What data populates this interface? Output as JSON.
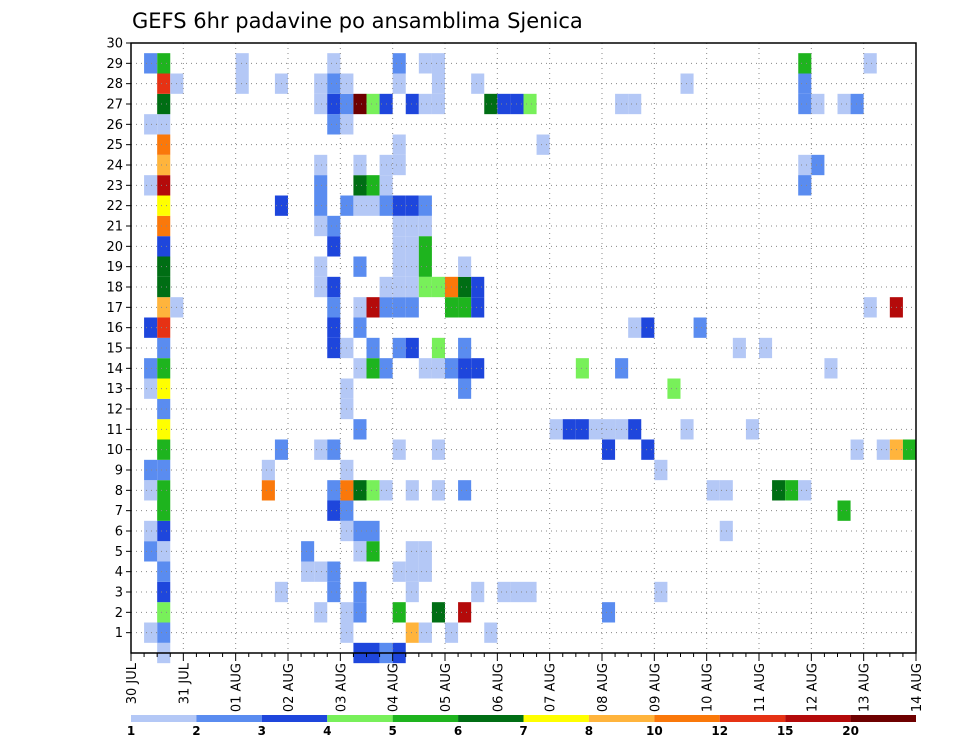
{
  "chart_data": {
    "type": "heatmap",
    "title": "GEFS 6hr padavine po ansamblima Sjenica",
    "x_labels": [
      "30 JUL",
      "31 JUL",
      "01 AUG",
      "02 AUG",
      "03 AUG",
      "04 AUG",
      "05 AUG",
      "06 AUG",
      "07 AUG",
      "08 AUG",
      "09 AUG",
      "10 AUG",
      "11 AUG",
      "12 AUG",
      "13 AUG",
      "14 AUG"
    ],
    "x_range": [
      0,
      60
    ],
    "steps_per_day": 4,
    "y_labels": [
      1,
      2,
      3,
      4,
      5,
      6,
      7,
      8,
      9,
      10,
      11,
      12,
      13,
      14,
      15,
      16,
      17,
      18,
      19,
      20,
      21,
      22,
      23,
      24,
      25,
      26,
      27,
      28,
      29,
      30
    ],
    "y_range": [
      0,
      30
    ],
    "grid": true,
    "legend": {
      "placement": "bottom",
      "thresholds": [
        "1",
        "2",
        "3",
        "4",
        "5",
        "6",
        "7",
        "8",
        "10",
        "12",
        "15",
        "20"
      ],
      "colors": [
        "#b4c8f6",
        "#5a8cf0",
        "#1e46dc",
        "#78f05a",
        "#1eb41e",
        "#006e14",
        "#ffff00",
        "#ffb43c",
        "#fa780a",
        "#e63214",
        "#b40a0a",
        "#6e0000"
      ]
    },
    "cells": [
      [
        2,
        0,
        1
      ],
      [
        2,
        1,
        2
      ],
      [
        2,
        2,
        4
      ],
      [
        2,
        3,
        3
      ],
      [
        2,
        4,
        2
      ],
      [
        2,
        5,
        1
      ],
      [
        2,
        6,
        3
      ],
      [
        2,
        7,
        5
      ],
      [
        2,
        8,
        5
      ],
      [
        2,
        9,
        2
      ],
      [
        2,
        10,
        5
      ],
      [
        2,
        11,
        7
      ],
      [
        2,
        12,
        2
      ],
      [
        2,
        13,
        7
      ],
      [
        2,
        14,
        5
      ],
      [
        2,
        15,
        2
      ],
      [
        2,
        16,
        10
      ],
      [
        2,
        17,
        8
      ],
      [
        2,
        18,
        6
      ],
      [
        2,
        19,
        6
      ],
      [
        2,
        20,
        3
      ],
      [
        2,
        21,
        9
      ],
      [
        2,
        22,
        7
      ],
      [
        2,
        23,
        11
      ],
      [
        2,
        24,
        8
      ],
      [
        2,
        25,
        9
      ],
      [
        2,
        26,
        1
      ],
      [
        2,
        27,
        6
      ],
      [
        2,
        28,
        10
      ],
      [
        2,
        29,
        5
      ],
      [
        2,
        30,
        7
      ],
      [
        1,
        1,
        1
      ],
      [
        1,
        5,
        2
      ],
      [
        1,
        6,
        1
      ],
      [
        1,
        8,
        1
      ],
      [
        1,
        9,
        2
      ],
      [
        1,
        13,
        1
      ],
      [
        1,
        14,
        2
      ],
      [
        1,
        16,
        3
      ],
      [
        1,
        23,
        1
      ],
      [
        1,
        26,
        1
      ],
      [
        1,
        29,
        2
      ],
      [
        3,
        17,
        1
      ],
      [
        3,
        28,
        1
      ],
      [
        8,
        28,
        1
      ],
      [
        8,
        29,
        1
      ],
      [
        14,
        4,
        1
      ],
      [
        14,
        10,
        1
      ],
      [
        14,
        24,
        1
      ],
      [
        14,
        21,
        1
      ],
      [
        14,
        2,
        1
      ],
      [
        14,
        28,
        1
      ],
      [
        14,
        27,
        1
      ],
      [
        14,
        19,
        1
      ],
      [
        14,
        18,
        1
      ],
      [
        14,
        22,
        2
      ],
      [
        14,
        23,
        2
      ],
      [
        10,
        8,
        9
      ],
      [
        10,
        9,
        1
      ],
      [
        11,
        3,
        1
      ],
      [
        11,
        10,
        2
      ],
      [
        11,
        22,
        3
      ],
      [
        11,
        28,
        1
      ],
      [
        13,
        4,
        1
      ],
      [
        13,
        5,
        2
      ],
      [
        15,
        3,
        2
      ],
      [
        15,
        4,
        2
      ],
      [
        15,
        7,
        3
      ],
      [
        15,
        8,
        2
      ],
      [
        15,
        10,
        2
      ],
      [
        15,
        15,
        3
      ],
      [
        15,
        16,
        3
      ],
      [
        15,
        17,
        2
      ],
      [
        15,
        18,
        3
      ],
      [
        15,
        20,
        3
      ],
      [
        15,
        21,
        2
      ],
      [
        15,
        26,
        2
      ],
      [
        15,
        27,
        3
      ],
      [
        15,
        28,
        2
      ],
      [
        15,
        29,
        1
      ],
      [
        15,
        30,
        2
      ],
      [
        16,
        1,
        1
      ],
      [
        16,
        2,
        1
      ],
      [
        16,
        6,
        1
      ],
      [
        16,
        7,
        2
      ],
      [
        16,
        8,
        9
      ],
      [
        16,
        9,
        1
      ],
      [
        16,
        12,
        1
      ],
      [
        16,
        13,
        1
      ],
      [
        16,
        15,
        1
      ],
      [
        16,
        22,
        2
      ],
      [
        16,
        26,
        1
      ],
      [
        16,
        27,
        2
      ],
      [
        16,
        28,
        1
      ],
      [
        17,
        0,
        3
      ],
      [
        17,
        2,
        2
      ],
      [
        17,
        3,
        2
      ],
      [
        17,
        5,
        1
      ],
      [
        17,
        6,
        2
      ],
      [
        17,
        8,
        6
      ],
      [
        17,
        11,
        2
      ],
      [
        17,
        14,
        1
      ],
      [
        17,
        16,
        2
      ],
      [
        17,
        17,
        1
      ],
      [
        17,
        19,
        2
      ],
      [
        17,
        22,
        1
      ],
      [
        17,
        23,
        6
      ],
      [
        17,
        24,
        1
      ],
      [
        17,
        27,
        12
      ],
      [
        18,
        0,
        3
      ],
      [
        18,
        5,
        5
      ],
      [
        18,
        6,
        2
      ],
      [
        18,
        8,
        4
      ],
      [
        18,
        14,
        5
      ],
      [
        18,
        15,
        2
      ],
      [
        18,
        17,
        11
      ],
      [
        18,
        22,
        1
      ],
      [
        18,
        23,
        5
      ],
      [
        18,
        27,
        4
      ],
      [
        19,
        0,
        2
      ],
      [
        19,
        8,
        1
      ],
      [
        19,
        14,
        2
      ],
      [
        19,
        17,
        2
      ],
      [
        19,
        18,
        1
      ],
      [
        19,
        22,
        2
      ],
      [
        19,
        23,
        1
      ],
      [
        19,
        24,
        1
      ],
      [
        19,
        27,
        3
      ],
      [
        20,
        0,
        3
      ],
      [
        20,
        2,
        5
      ],
      [
        20,
        4,
        1
      ],
      [
        20,
        10,
        1
      ],
      [
        20,
        15,
        2
      ],
      [
        20,
        17,
        2
      ],
      [
        20,
        18,
        1
      ],
      [
        20,
        19,
        1
      ],
      [
        20,
        20,
        1
      ],
      [
        20,
        21,
        1
      ],
      [
        20,
        22,
        3
      ],
      [
        20,
        24,
        1
      ],
      [
        20,
        25,
        1
      ],
      [
        20,
        28,
        1
      ],
      [
        20,
        29,
        2
      ],
      [
        20,
        30,
        1
      ],
      [
        21,
        1,
        8
      ],
      [
        21,
        3,
        1
      ],
      [
        21,
        4,
        1
      ],
      [
        21,
        5,
        1
      ],
      [
        21,
        8,
        1
      ],
      [
        21,
        15,
        3
      ],
      [
        21,
        17,
        2
      ],
      [
        21,
        18,
        1
      ],
      [
        21,
        19,
        1
      ],
      [
        21,
        20,
        1
      ],
      [
        21,
        21,
        1
      ],
      [
        21,
        22,
        3
      ],
      [
        21,
        27,
        3
      ],
      [
        22,
        1,
        1
      ],
      [
        22,
        4,
        1
      ],
      [
        22,
        5,
        1
      ],
      [
        22,
        14,
        1
      ],
      [
        22,
        18,
        4
      ],
      [
        22,
        19,
        5
      ],
      [
        22,
        20,
        5
      ],
      [
        22,
        21,
        1
      ],
      [
        22,
        22,
        2
      ],
      [
        22,
        27,
        1
      ],
      [
        22,
        29,
        1
      ],
      [
        23,
        2,
        6
      ],
      [
        23,
        8,
        1
      ],
      [
        23,
        10,
        1
      ],
      [
        23,
        14,
        1
      ],
      [
        23,
        15,
        4
      ],
      [
        23,
        18,
        4
      ],
      [
        23,
        27,
        1
      ],
      [
        23,
        29,
        1
      ],
      [
        23,
        28,
        1
      ],
      [
        24,
        1,
        1
      ],
      [
        24,
        14,
        2
      ],
      [
        24,
        17,
        5
      ],
      [
        24,
        18,
        9
      ],
      [
        25,
        2,
        11
      ],
      [
        25,
        8,
        2
      ],
      [
        25,
        13,
        2
      ],
      [
        25,
        14,
        3
      ],
      [
        25,
        15,
        2
      ],
      [
        25,
        17,
        5
      ],
      [
        25,
        18,
        6
      ],
      [
        25,
        19,
        1
      ],
      [
        26,
        3,
        1
      ],
      [
        26,
        14,
        3
      ],
      [
        26,
        17,
        3
      ],
      [
        26,
        18,
        3
      ],
      [
        26,
        28,
        1
      ],
      [
        27,
        1,
        1
      ],
      [
        27,
        27,
        6
      ],
      [
        28,
        3,
        1
      ],
      [
        28,
        27,
        3
      ],
      [
        29,
        3,
        1
      ],
      [
        29,
        27,
        3
      ],
      [
        30,
        3,
        1
      ],
      [
        30,
        27,
        4
      ],
      [
        31,
        25,
        1
      ],
      [
        32,
        11,
        1
      ],
      [
        33,
        11,
        3
      ],
      [
        34,
        11,
        3
      ],
      [
        34,
        14,
        4
      ],
      [
        35,
        11,
        1
      ],
      [
        36,
        11,
        1
      ],
      [
        37,
        11,
        1
      ],
      [
        36,
        2,
        2
      ],
      [
        36,
        10,
        3
      ],
      [
        37,
        14,
        2
      ],
      [
        37,
        27,
        1
      ],
      [
        38,
        11,
        3
      ],
      [
        38,
        16,
        1
      ],
      [
        38,
        27,
        1
      ],
      [
        39,
        10,
        3
      ],
      [
        39,
        16,
        3
      ],
      [
        40,
        3,
        1
      ],
      [
        40,
        9,
        1
      ],
      [
        41,
        13,
        4
      ],
      [
        42,
        28,
        1
      ],
      [
        42,
        11,
        1
      ],
      [
        43,
        16,
        2
      ],
      [
        44,
        8,
        1
      ],
      [
        45,
        8,
        1
      ],
      [
        45,
        6,
        1
      ],
      [
        46,
        15,
        1
      ],
      [
        47,
        11,
        1
      ],
      [
        48,
        15,
        1
      ],
      [
        49,
        8,
        6
      ],
      [
        50,
        8,
        5
      ],
      [
        51,
        8,
        1
      ],
      [
        51,
        29,
        5
      ],
      [
        51,
        24,
        1
      ],
      [
        51,
        23,
        1
      ],
      [
        51,
        27,
        2
      ],
      [
        51,
        28,
        2
      ],
      [
        51,
        23,
        2
      ],
      [
        52,
        24,
        2
      ],
      [
        52,
        27,
        1
      ],
      [
        53,
        14,
        1
      ],
      [
        54,
        7,
        5
      ],
      [
        54,
        27,
        1
      ],
      [
        55,
        10,
        1
      ],
      [
        55,
        27,
        2
      ],
      [
        56,
        17,
        1
      ],
      [
        56,
        29,
        1
      ],
      [
        57,
        10,
        1
      ],
      [
        58,
        10,
        8
      ],
      [
        58,
        17,
        11
      ],
      [
        59,
        10,
        5
      ],
      [
        60,
        10,
        1
      ]
    ]
  }
}
